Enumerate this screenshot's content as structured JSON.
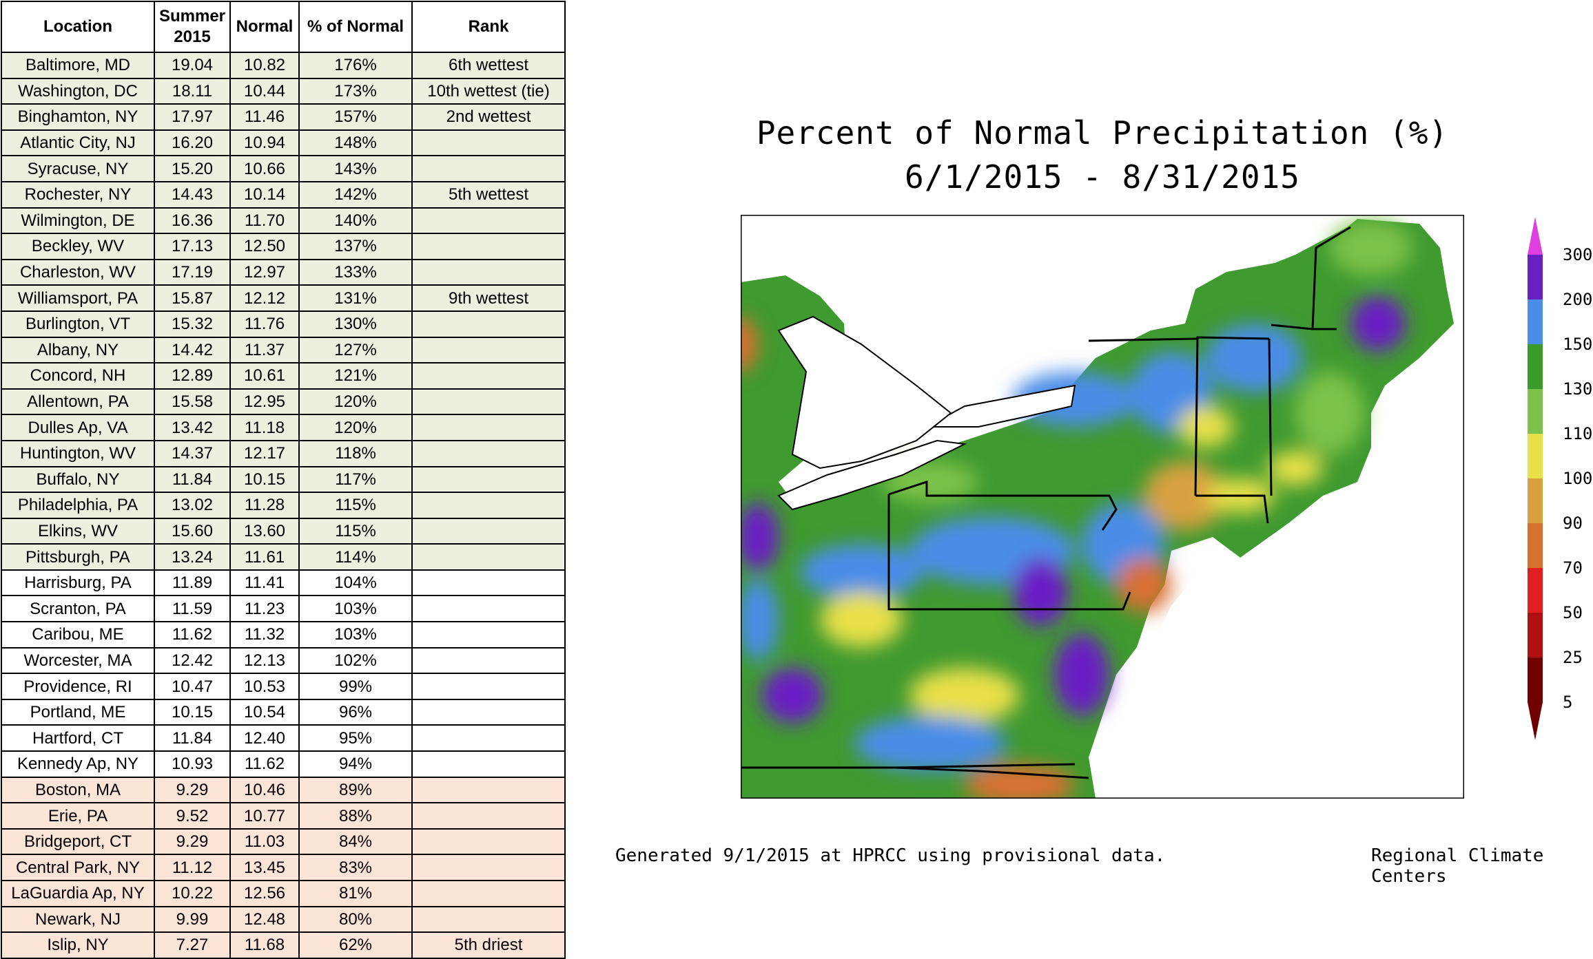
{
  "table": {
    "headers": {
      "location": "Location",
      "summer_line1": "Summer",
      "summer_line2": "2015",
      "normal": "Normal",
      "percent": "% of Normal",
      "rank": "Rank"
    },
    "rows": [
      {
        "location": "Baltimore, MD",
        "summer": "19.04",
        "normal": "10.82",
        "pct": "176%",
        "rank": "6th wettest",
        "group": "wet"
      },
      {
        "location": "Washington, DC",
        "summer": "18.11",
        "normal": "10.44",
        "pct": "173%",
        "rank": "10th wettest (tie)",
        "group": "wet"
      },
      {
        "location": "Binghamton, NY",
        "summer": "17.97",
        "normal": "11.46",
        "pct": "157%",
        "rank": "2nd wettest",
        "group": "wet"
      },
      {
        "location": "Atlantic City, NJ",
        "summer": "16.20",
        "normal": "10.94",
        "pct": "148%",
        "rank": "",
        "group": "wet"
      },
      {
        "location": "Syracuse, NY",
        "summer": "15.20",
        "normal": "10.66",
        "pct": "143%",
        "rank": "",
        "group": "wet"
      },
      {
        "location": "Rochester, NY",
        "summer": "14.43",
        "normal": "10.14",
        "pct": "142%",
        "rank": "5th wettest",
        "group": "wet"
      },
      {
        "location": "Wilmington, DE",
        "summer": "16.36",
        "normal": "11.70",
        "pct": "140%",
        "rank": "",
        "group": "wet"
      },
      {
        "location": "Beckley, WV",
        "summer": "17.13",
        "normal": "12.50",
        "pct": "137%",
        "rank": "",
        "group": "wet"
      },
      {
        "location": "Charleston, WV",
        "summer": "17.19",
        "normal": "12.97",
        "pct": "133%",
        "rank": "",
        "group": "wet"
      },
      {
        "location": "Williamsport, PA",
        "summer": "15.87",
        "normal": "12.12",
        "pct": "131%",
        "rank": "9th wettest",
        "group": "wet"
      },
      {
        "location": "Burlington, VT",
        "summer": "15.32",
        "normal": "11.76",
        "pct": "130%",
        "rank": "",
        "group": "wet"
      },
      {
        "location": "Albany, NY",
        "summer": "14.42",
        "normal": "11.37",
        "pct": "127%",
        "rank": "",
        "group": "wet"
      },
      {
        "location": "Concord, NH",
        "summer": "12.89",
        "normal": "10.61",
        "pct": "121%",
        "rank": "",
        "group": "wet"
      },
      {
        "location": "Allentown, PA",
        "summer": "15.58",
        "normal": "12.95",
        "pct": "120%",
        "rank": "",
        "group": "wet"
      },
      {
        "location": "Dulles Ap, VA",
        "summer": "13.42",
        "normal": "11.18",
        "pct": "120%",
        "rank": "",
        "group": "wet"
      },
      {
        "location": "Huntington, WV",
        "summer": "14.37",
        "normal": "12.17",
        "pct": "118%",
        "rank": "",
        "group": "wet"
      },
      {
        "location": "Buffalo, NY",
        "summer": "11.84",
        "normal": "10.15",
        "pct": "117%",
        "rank": "",
        "group": "wet"
      },
      {
        "location": "Philadelphia, PA",
        "summer": "13.02",
        "normal": "11.28",
        "pct": "115%",
        "rank": "",
        "group": "wet"
      },
      {
        "location": "Elkins, WV",
        "summer": "15.60",
        "normal": "13.60",
        "pct": "115%",
        "rank": "",
        "group": "wet"
      },
      {
        "location": "Pittsburgh, PA",
        "summer": "13.24",
        "normal": "11.61",
        "pct": "114%",
        "rank": "",
        "group": "wet"
      },
      {
        "location": "Harrisburg, PA",
        "summer": "11.89",
        "normal": "11.41",
        "pct": "104%",
        "rank": "",
        "group": "mid"
      },
      {
        "location": "Scranton, PA",
        "summer": "11.59",
        "normal": "11.23",
        "pct": "103%",
        "rank": "",
        "group": "mid"
      },
      {
        "location": "Caribou, ME",
        "summer": "11.62",
        "normal": "11.32",
        "pct": "103%",
        "rank": "",
        "group": "mid"
      },
      {
        "location": "Worcester, MA",
        "summer": "12.42",
        "normal": "12.13",
        "pct": "102%",
        "rank": "",
        "group": "mid"
      },
      {
        "location": "Providence, RI",
        "summer": "10.47",
        "normal": "10.53",
        "pct": "99%",
        "rank": "",
        "group": "mid"
      },
      {
        "location": "Portland, ME",
        "summer": "10.15",
        "normal": "10.54",
        "pct": "96%",
        "rank": "",
        "group": "mid"
      },
      {
        "location": "Hartford, CT",
        "summer": "11.84",
        "normal": "12.40",
        "pct": "95%",
        "rank": "",
        "group": "mid"
      },
      {
        "location": "Kennedy Ap, NY",
        "summer": "10.93",
        "normal": "11.62",
        "pct": "94%",
        "rank": "",
        "group": "mid"
      },
      {
        "location": "Boston, MA",
        "summer": "9.29",
        "normal": "10.46",
        "pct": "89%",
        "rank": "",
        "group": "dry"
      },
      {
        "location": "Erie, PA",
        "summer": "9.52",
        "normal": "10.77",
        "pct": "88%",
        "rank": "",
        "group": "dry"
      },
      {
        "location": "Bridgeport, CT",
        "summer": "9.29",
        "normal": "11.03",
        "pct": "84%",
        "rank": "",
        "group": "dry"
      },
      {
        "location": "Central Park, NY",
        "summer": "11.12",
        "normal": "13.45",
        "pct": "83%",
        "rank": "",
        "group": "dry"
      },
      {
        "location": "LaGuardia Ap, NY",
        "summer": "10.22",
        "normal": "12.56",
        "pct": "81%",
        "rank": "",
        "group": "dry"
      },
      {
        "location": "Newark, NJ",
        "summer": "9.99",
        "normal": "12.48",
        "pct": "80%",
        "rank": "",
        "group": "dry"
      },
      {
        "location": "Islip, NY",
        "summer": "7.27",
        "normal": "11.68",
        "pct": "62%",
        "rank": "5th driest",
        "group": "dry"
      }
    ],
    "colors": {
      "wet": "#ebf1de",
      "mid": "#ffffff",
      "dry": "#fce4d6"
    }
  },
  "map": {
    "title_line1": "Percent of Normal Precipitation (%)",
    "title_line2": "6/1/2015 - 8/31/2015",
    "footer_left": "Generated 9/1/2015 at HPRCC using provisional data.",
    "footer_right": "Regional Climate Centers",
    "legend": [
      {
        "label": "300",
        "color": "#e040e0"
      },
      {
        "label": "200",
        "color": "#6a1fc4"
      },
      {
        "label": "150",
        "color": "#4a8de8"
      },
      {
        "label": "130",
        "color": "#3a9a2a"
      },
      {
        "label": "110",
        "color": "#7cc24a"
      },
      {
        "label": "100",
        "color": "#e8e04a"
      },
      {
        "label": "90",
        "color": "#d8a040"
      },
      {
        "label": "70",
        "color": "#d87030"
      },
      {
        "label": "50",
        "color": "#e02020"
      },
      {
        "label": "25",
        "color": "#b01010"
      },
      {
        "label": "5",
        "color": "#700000"
      }
    ]
  }
}
